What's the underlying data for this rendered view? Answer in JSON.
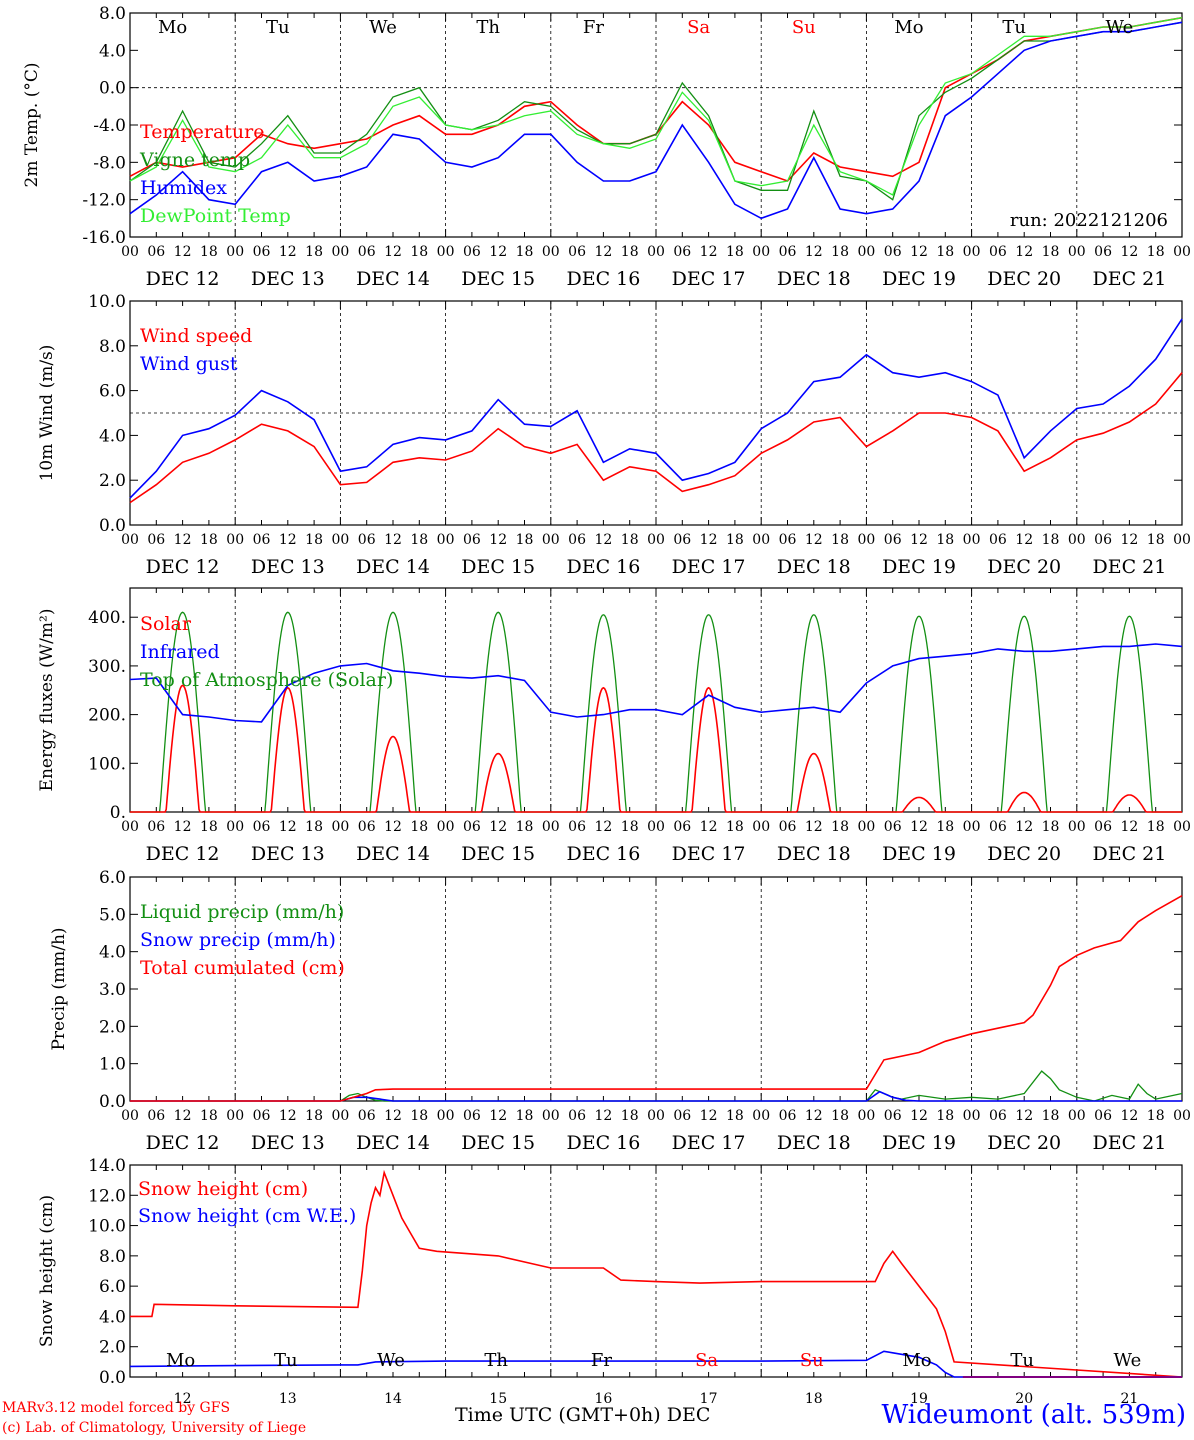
{
  "colors": {
    "red": "#ff0000",
    "darkgreen": "#138f13",
    "blue": "#0000ff",
    "lightgreen": "#33ee33",
    "purple": "#800080"
  },
  "days": [
    "DEC 12",
    "DEC 13",
    "DEC 14",
    "DEC 15",
    "DEC 16",
    "DEC 17",
    "DEC 18",
    "DEC 19",
    "DEC 20",
    "DEC 21"
  ],
  "hour_ticks": [
    "00",
    "06",
    "12",
    "18"
  ],
  "last_tick": "00",
  "weekdays": [
    {
      "label": "Mo",
      "weekend": false
    },
    {
      "label": "Tu",
      "weekend": false
    },
    {
      "label": "We",
      "weekend": false
    },
    {
      "label": "Th",
      "weekend": false
    },
    {
      "label": "Fr",
      "weekend": false
    },
    {
      "label": "Sa",
      "weekend": true
    },
    {
      "label": "Su",
      "weekend": true
    },
    {
      "label": "Mo",
      "weekend": false
    },
    {
      "label": "Tu",
      "weekend": false
    },
    {
      "label": "We",
      "weekend": false
    }
  ],
  "bottom_day_numbers": [
    "12",
    "13",
    "14",
    "15",
    "16",
    "17",
    "18",
    "19",
    "20",
    "21"
  ],
  "footer": {
    "credit_line1": "MARv3.12 model forced by GFS",
    "credit_line2": "(c) Lab. of Climatology, University of Liege",
    "x_title": "Time UTC (GMT+0h) DEC",
    "station": "Wideumont (alt. 539m)"
  },
  "chart_data": [
    {
      "id": "temp",
      "type": "line",
      "ylabel": "2m Temp. (°C)",
      "ylim": [
        -16,
        8
      ],
      "yticks": [
        "8.0",
        "4.0",
        "0.0",
        "-4.0",
        "-8.0",
        "-12.0",
        "-16.0"
      ],
      "yvals": [
        8,
        4,
        0,
        -4,
        -8,
        -12,
        -16
      ],
      "hline": 0,
      "run_label": "run: 2022121206",
      "x_unit": "hours since DEC 12 00 UTC",
      "series": [
        {
          "name": "Temperature",
          "color": "red",
          "x": [
            0,
            6,
            12,
            18,
            24,
            30,
            36,
            42,
            48,
            54,
            60,
            66,
            72,
            78,
            84,
            90,
            96,
            102,
            108,
            114,
            120,
            126,
            132,
            138,
            144,
            150,
            156,
            162,
            168,
            174,
            180,
            186,
            192,
            198,
            204,
            210,
            216,
            222,
            228,
            234,
            240
          ],
          "y": [
            -9.5,
            -8,
            -8.5,
            -8,
            -7.5,
            -5,
            -6,
            -6.5,
            -6,
            -5.5,
            -4,
            -3,
            -5,
            -5,
            -4,
            -2,
            -1.5,
            -4,
            -6,
            -6,
            -5,
            -1.5,
            -4,
            -8,
            -9,
            -10,
            -7,
            -8.5,
            -9,
            -9.5,
            -8,
            0,
            1.5,
            3,
            5,
            5.5,
            6,
            6.5,
            6.5,
            7,
            7.5
          ]
        },
        {
          "name": "Vigne temp",
          "color": "darkgreen",
          "x": [
            0,
            6,
            12,
            18,
            24,
            30,
            36,
            42,
            48,
            54,
            60,
            66,
            72,
            78,
            84,
            90,
            96,
            102,
            108,
            114,
            120,
            126,
            132,
            138,
            144,
            150,
            156,
            162,
            168,
            174,
            180,
            186,
            192,
            198,
            204,
            210,
            216,
            222,
            228,
            234,
            240
          ],
          "y": [
            -10,
            -8,
            -2.5,
            -8,
            -8.5,
            -6,
            -3,
            -7,
            -7,
            -5,
            -1,
            0,
            -4,
            -4.5,
            -3.5,
            -1.5,
            -2,
            -4.5,
            -6,
            -6,
            -5,
            0.5,
            -3,
            -10,
            -11,
            -11,
            -2.5,
            -9.5,
            -10,
            -12,
            -3,
            -0.5,
            1,
            3,
            5,
            5,
            5.5,
            6,
            6,
            6.5,
            7
          ]
        },
        {
          "name": "Humidex",
          "color": "blue",
          "x": [
            0,
            6,
            12,
            18,
            24,
            30,
            36,
            42,
            48,
            54,
            60,
            66,
            72,
            78,
            84,
            90,
            96,
            102,
            108,
            114,
            120,
            126,
            132,
            138,
            144,
            150,
            156,
            162,
            168,
            174,
            180,
            186,
            192,
            198,
            204,
            210,
            216,
            222,
            228,
            234,
            240
          ],
          "y": [
            -13.5,
            -11.5,
            -9,
            -12,
            -12.5,
            -9,
            -8,
            -10,
            -9.5,
            -8.5,
            -5,
            -5.5,
            -8,
            -8.5,
            -7.5,
            -5,
            -5,
            -8,
            -10,
            -10,
            -9,
            -4,
            -8,
            -12.5,
            -14,
            -13,
            -7.5,
            -13,
            -13.5,
            -13,
            -10,
            -3,
            -1,
            1.5,
            4,
            5,
            5.5,
            6,
            6,
            6.5,
            7
          ]
        },
        {
          "name": "DewPoint Temp",
          "color": "lightgreen",
          "x": [
            0,
            6,
            12,
            18,
            24,
            30,
            36,
            42,
            48,
            54,
            60,
            66,
            72,
            78,
            84,
            90,
            96,
            102,
            108,
            114,
            120,
            126,
            132,
            138,
            144,
            150,
            156,
            162,
            168,
            174,
            180,
            186,
            192,
            198,
            204,
            210,
            216,
            222,
            228,
            234,
            240
          ],
          "y": [
            -10,
            -8.5,
            -3.5,
            -8.5,
            -9,
            -7.5,
            -4,
            -7.5,
            -7.5,
            -6,
            -2,
            -1,
            -4,
            -4.5,
            -4,
            -3,
            -2.5,
            -5,
            -6,
            -6.5,
            -5.5,
            -0.5,
            -3.5,
            -10,
            -10.5,
            -10,
            -4,
            -9,
            -10,
            -11.5,
            -4,
            0.5,
            1.5,
            3.5,
            5.5,
            5.5,
            6,
            6.5,
            6.5,
            7,
            7.5
          ]
        }
      ]
    },
    {
      "id": "wind",
      "type": "line",
      "ylabel": "10m Wind (m/s)",
      "ylim": [
        0,
        10
      ],
      "yticks": [
        "10.0",
        "8.0",
        "6.0",
        "4.0",
        "2.0",
        "0.0"
      ],
      "yvals": [
        10,
        8,
        6,
        4,
        2,
        0
      ],
      "hline": 5,
      "x_unit": "hours since DEC 12 00 UTC",
      "series": [
        {
          "name": "Wind speed",
          "color": "red",
          "x": [
            0,
            6,
            12,
            18,
            24,
            30,
            36,
            42,
            48,
            54,
            60,
            66,
            72,
            78,
            84,
            90,
            96,
            102,
            108,
            114,
            120,
            126,
            132,
            138,
            144,
            150,
            156,
            162,
            168,
            174,
            180,
            186,
            192,
            198,
            204,
            210,
            216,
            222,
            228,
            234,
            240
          ],
          "y": [
            1,
            1.8,
            2.8,
            3.2,
            3.8,
            4.5,
            4.2,
            3.5,
            1.8,
            1.9,
            2.8,
            3,
            2.9,
            3.3,
            4.3,
            3.5,
            3.2,
            3.6,
            2,
            2.6,
            2.4,
            1.5,
            1.8,
            2.2,
            3.2,
            3.8,
            4.6,
            4.8,
            3.5,
            4.2,
            5,
            5,
            4.8,
            4.2,
            2.4,
            3,
            3.8,
            4.1,
            4.6,
            5.4,
            6.8
          ]
        },
        {
          "name": "Wind gust",
          "color": "blue",
          "x": [
            0,
            6,
            12,
            18,
            24,
            30,
            36,
            42,
            48,
            54,
            60,
            66,
            72,
            78,
            84,
            90,
            96,
            102,
            108,
            114,
            120,
            126,
            132,
            138,
            144,
            150,
            156,
            162,
            168,
            174,
            180,
            186,
            192,
            198,
            204,
            210,
            216,
            222,
            228,
            234,
            240
          ],
          "y": [
            1.2,
            2.4,
            4,
            4.3,
            4.9,
            6,
            5.5,
            4.7,
            2.4,
            2.6,
            3.6,
            3.9,
            3.8,
            4.2,
            5.6,
            4.5,
            4.4,
            5.1,
            2.8,
            3.4,
            3.2,
            2,
            2.3,
            2.8,
            4.3,
            5,
            6.4,
            6.6,
            7.6,
            6.8,
            6.6,
            6.8,
            6.4,
            5.8,
            3,
            4.2,
            5.2,
            5.4,
            6.2,
            7.4,
            9.2
          ]
        }
      ]
    },
    {
      "id": "energy",
      "type": "line",
      "ylabel": "Energy fluxes (W/m²)",
      "ylim": [
        0,
        460
      ],
      "yticks": [
        "400.",
        "300.",
        "200.",
        "100.",
        "0."
      ],
      "yvals": [
        400,
        300,
        200,
        100,
        0
      ],
      "x_unit": "hours since DEC 12 00 UTC",
      "solar_peaks": [
        260,
        255,
        155,
        120,
        255,
        255,
        120,
        30,
        40,
        35
      ],
      "toa_peaks": [
        410,
        410,
        410,
        410,
        405,
        405,
        405,
        402,
        402,
        402
      ],
      "series": [
        {
          "name": "Solar",
          "color": "red",
          "shape": "daily"
        },
        {
          "name": "Infrared",
          "color": "blue",
          "x": [
            0,
            6,
            12,
            18,
            24,
            30,
            36,
            42,
            48,
            54,
            60,
            66,
            72,
            78,
            84,
            90,
            96,
            102,
            108,
            114,
            120,
            126,
            132,
            138,
            144,
            150,
            156,
            162,
            168,
            174,
            180,
            186,
            192,
            198,
            204,
            210,
            216,
            222,
            228,
            234,
            240
          ],
          "y": [
            272,
            275,
            200,
            195,
            188,
            185,
            260,
            285,
            300,
            305,
            290,
            285,
            278,
            275,
            280,
            270,
            205,
            195,
            200,
            210,
            210,
            200,
            240,
            215,
            205,
            210,
            215,
            205,
            265,
            300,
            315,
            320,
            325,
            335,
            330,
            330,
            335,
            340,
            340,
            345,
            340
          ]
        },
        {
          "name": "Top of Atmosphere (Solar)",
          "color": "darkgreen",
          "shape": "daily"
        }
      ]
    },
    {
      "id": "precip",
      "type": "line",
      "ylabel": "Precip (mm/h)",
      "ylim": [
        0,
        6
      ],
      "yticks": [
        "6.0",
        "5.0",
        "4.0",
        "3.0",
        "2.0",
        "1.0",
        "0.0"
      ],
      "yvals": [
        6,
        5,
        4,
        3,
        2,
        1,
        0
      ],
      "x_unit": "hours since DEC 12 00 UTC",
      "series": [
        {
          "name": "Liquid precip (mm/h)",
          "color": "darkgreen",
          "x": [
            0,
            48,
            50,
            52,
            54,
            56,
            58,
            60,
            168,
            170,
            172,
            174,
            176,
            180,
            186,
            192,
            198,
            204,
            208,
            210,
            212,
            216,
            220,
            224,
            228,
            230,
            232,
            234,
            236,
            240
          ],
          "y": [
            0,
            0,
            0.15,
            0.2,
            0.1,
            0.02,
            0,
            0,
            0,
            0.3,
            0.2,
            0.1,
            0.05,
            0.15,
            0.05,
            0.1,
            0.05,
            0.2,
            0.8,
            0.6,
            0.3,
            0.1,
            0,
            0.15,
            0.05,
            0.45,
            0.2,
            0.05,
            0.1,
            0.2
          ]
        },
        {
          "name": "Snow precip (mm/h)",
          "color": "blue",
          "x": [
            0,
            48,
            51,
            54,
            57,
            60,
            168,
            171,
            174,
            177,
            180,
            240
          ],
          "y": [
            0,
            0,
            0.1,
            0.1,
            0.05,
            0,
            0,
            0.25,
            0.1,
            0.02,
            0,
            0
          ]
        },
        {
          "name": "Total cumulated (cm)",
          "color": "red",
          "x": [
            0,
            48,
            54,
            56,
            60,
            168,
            172,
            180,
            186,
            192,
            198,
            204,
            206,
            210,
            212,
            216,
            220,
            226,
            230,
            234,
            240
          ],
          "y": [
            0,
            0,
            0.2,
            0.3,
            0.32,
            0.32,
            1.1,
            1.3,
            1.6,
            1.8,
            1.95,
            2.1,
            2.3,
            3.1,
            3.6,
            3.9,
            4.1,
            4.3,
            4.8,
            5.1,
            5.5
          ]
        }
      ]
    },
    {
      "id": "snow",
      "type": "line",
      "ylabel": "Snow height (cm)",
      "ylim": [
        0,
        14
      ],
      "yticks": [
        "14.0",
        "12.0",
        "10.0",
        "8.0",
        "6.0",
        "4.0",
        "2.0",
        "0.0"
      ],
      "yvals": [
        14,
        12,
        10,
        8,
        6,
        4,
        2,
        0
      ],
      "x_unit": "hours since DEC 12 00 UTC",
      "series": [
        {
          "name": "Snow height (cm)",
          "color": "red",
          "x": [
            0,
            5,
            5.5,
            24,
            52,
            53,
            54,
            55,
            56,
            57,
            58,
            60,
            62,
            64,
            66,
            70,
            84,
            96,
            108,
            112,
            120,
            130,
            144,
            150,
            160,
            170,
            172,
            174,
            176,
            180,
            184,
            186,
            188,
            240
          ],
          "y": [
            4,
            4,
            4.8,
            4.7,
            4.6,
            7,
            10,
            11.5,
            12.5,
            12,
            13.5,
            12,
            10.5,
            9.5,
            8.5,
            8.3,
            8,
            7.2,
            7.2,
            6.4,
            6.3,
            6.2,
            6.3,
            6.3,
            6.3,
            6.3,
            7.5,
            8.3,
            7.5,
            6,
            4.5,
            3,
            1,
            0
          ]
        },
        {
          "name": "Snow height (cm W.E.)",
          "color": "blue",
          "x": [
            0,
            24,
            48,
            52,
            56,
            72,
            96,
            120,
            144,
            168,
            170,
            172,
            174,
            176,
            180,
            184,
            186,
            188,
            240
          ],
          "y": [
            0.7,
            0.75,
            0.8,
            0.8,
            1,
            1.05,
            1.05,
            1.05,
            1.05,
            1.1,
            1.4,
            1.7,
            1.6,
            1.5,
            1.3,
            0.8,
            0.3,
            0,
            0
          ]
        }
      ]
    }
  ]
}
